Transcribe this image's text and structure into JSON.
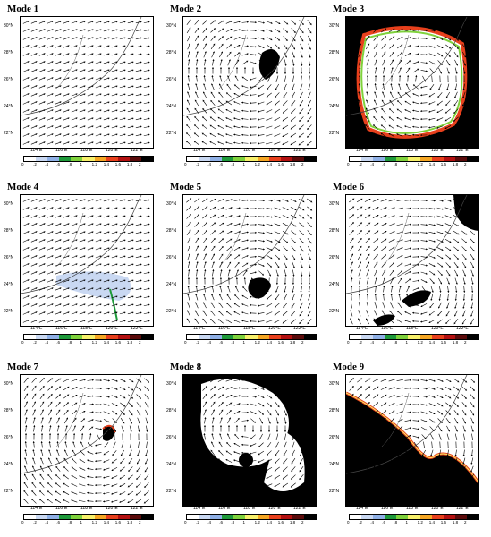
{
  "figure": {
    "panels": [
      {
        "title": "Mode 1",
        "feature": "none"
      },
      {
        "title": "Mode 2",
        "feature": "vortex-patch"
      },
      {
        "title": "Mode 3",
        "feature": "border-ring"
      },
      {
        "title": "Mode 4",
        "feature": "light-blue"
      },
      {
        "title": "Mode 5",
        "feature": "vortex-patch"
      },
      {
        "title": "Mode 6",
        "feature": "two-patches"
      },
      {
        "title": "Mode 7",
        "feature": "small-patch"
      },
      {
        "title": "Mode 8",
        "feature": "black-fill"
      },
      {
        "title": "Mode 9",
        "feature": "half-black"
      }
    ],
    "lat_labels": [
      "30°N",
      "28°N",
      "26°N",
      "24°N",
      "22°N"
    ],
    "lon_labels": [
      "114°E",
      "116°E",
      "118°E",
      "120°E",
      "122°E"
    ],
    "colorbar_ticks": [
      "0",
      ".2",
      ".4",
      ".6",
      ".8",
      "1",
      "1.2",
      "1.4",
      "1.6",
      "1.8",
      "2"
    ],
    "colorbar_colors": [
      "#ffffff",
      "#c9d8f2",
      "#8fb0e6",
      "#1e9a3a",
      "#7fd23c",
      "#f7f06a",
      "#f5a623",
      "#e8401c",
      "#b31010",
      "#5a0a0a",
      "#000000"
    ]
  }
}
